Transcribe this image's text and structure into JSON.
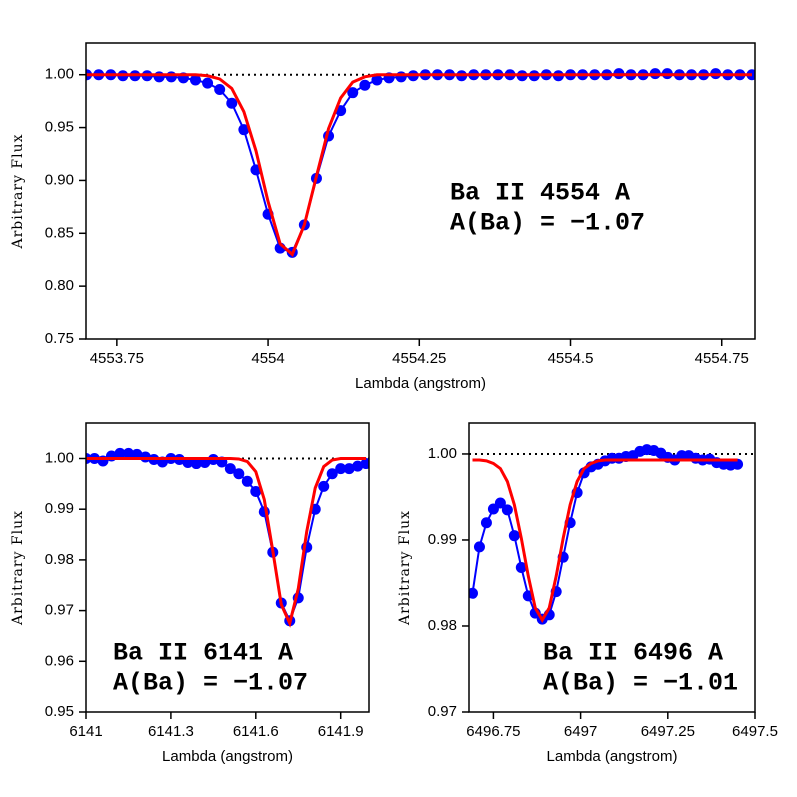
{
  "chart_data": [
    {
      "type": "line",
      "xlabel": "Lambda (angstrom)",
      "ylabel": "Arbitrary Flux",
      "annotations": [
        "Ba II 4554 A",
        "A(Ba) = −1.07"
      ],
      "xlim": [
        4553.699,
        4554.805
      ],
      "ylim": [
        0.75,
        1.03
      ],
      "xticks": [
        4553.75,
        4554,
        4554.25,
        4554.5,
        4554.75
      ],
      "yticks": [
        0.75,
        {
          "value": 0.8,
          "label": "0.80"
        },
        0.85,
        {
          "value": 0.9,
          "label": "0.90"
        },
        0.95,
        {
          "value": 1,
          "label": "1.00"
        }
      ],
      "hline": 1,
      "x": [
        4553.7,
        4553.72,
        4553.74,
        4553.76,
        4553.78,
        4553.8,
        4553.82,
        4553.84,
        4553.86,
        4553.88,
        4553.9,
        4553.92,
        4553.94,
        4553.96,
        4553.98,
        4554,
        4554.02,
        4554.04,
        4554.06,
        4554.08,
        4554.1,
        4554.12,
        4554.14,
        4554.16,
        4554.18,
        4554.2,
        4554.22,
        4554.24,
        4554.26,
        4554.28,
        4554.3,
        4554.32,
        4554.34,
        4554.36,
        4554.38,
        4554.4,
        4554.42,
        4554.44,
        4554.46,
        4554.48,
        4554.5,
        4554.52,
        4554.54,
        4554.56,
        4554.58,
        4554.6,
        4554.62,
        4554.64,
        4554.66,
        4554.68,
        4554.7,
        4554.72,
        4554.74,
        4554.76,
        4554.78,
        4554.8
      ],
      "series": [
        {
          "color": "#0000ff",
          "markers": true,
          "values": [
            1,
            1,
            1,
            0.999,
            0.999,
            0.999,
            0.998,
            0.998,
            0.997,
            0.995,
            0.992,
            0.986,
            0.973,
            0.948,
            0.91,
            0.868,
            0.836,
            0.832,
            0.858,
            0.902,
            0.942,
            0.966,
            0.983,
            0.99,
            0.995,
            0.997,
            0.998,
            0.999,
            1,
            1,
            1,
            0.999,
            1,
            1,
            1,
            1,
            0.999,
            0.999,
            1,
            0.999,
            1,
            1,
            1,
            1,
            1.001,
            1,
            1,
            1.001,
            1.001,
            1,
            1,
            1,
            1.001,
            1,
            1,
            1
          ]
        },
        {
          "color": "#ff0000",
          "markers": false,
          "values": [
            1,
            1,
            1,
            1,
            1,
            1,
            1,
            1,
            1,
            1,
            0.999,
            0.996,
            0.987,
            0.965,
            0.928,
            0.88,
            0.84,
            0.83,
            0.858,
            0.904,
            0.949,
            0.978,
            0.993,
            0.998,
            1,
            1,
            1,
            1,
            1,
            1,
            1,
            1,
            1,
            1,
            1,
            1,
            1,
            1,
            1,
            1,
            1,
            1,
            1,
            1,
            1,
            1,
            1,
            1,
            1,
            1,
            1,
            1,
            1,
            1,
            1,
            1
          ]
        }
      ]
    },
    {
      "type": "line",
      "xlabel": "Lambda (angstrom)",
      "ylabel": "Arbitrary Flux",
      "annotations": [
        "Ba II 6141 A",
        "A(Ba) = −1.07"
      ],
      "xlim": [
        6141,
        6142
      ],
      "ylim": [
        0.95,
        1.007
      ],
      "xticks": [
        6141,
        6141.3,
        6141.6,
        6141.9
      ],
      "yticks": [
        0.95,
        0.96,
        0.97,
        0.98,
        0.99,
        {
          "value": 1,
          "label": "1.00"
        }
      ],
      "hline": 1,
      "x": [
        6141,
        6141.03,
        6141.06,
        6141.09,
        6141.12,
        6141.15,
        6141.18,
        6141.21,
        6141.24,
        6141.27,
        6141.3,
        6141.33,
        6141.36,
        6141.39,
        6141.42,
        6141.45,
        6141.48,
        6141.51,
        6141.54,
        6141.57,
        6141.6,
        6141.63,
        6141.66,
        6141.69,
        6141.72,
        6141.75,
        6141.78,
        6141.81,
        6141.84,
        6141.87,
        6141.9,
        6141.93,
        6141.96,
        6141.99
      ],
      "series": [
        {
          "color": "#0000ff",
          "markers": true,
          "values": [
            1,
            1,
            0.9995,
            1.0005,
            1.001,
            1.001,
            1.0008,
            1.0003,
            0.9998,
            0.9993,
            1,
            0.9998,
            0.9992,
            0.999,
            0.9992,
            0.9998,
            0.9993,
            0.998,
            0.997,
            0.9955,
            0.9935,
            0.9895,
            0.9815,
            0.9715,
            0.968,
            0.9725,
            0.9825,
            0.99,
            0.9945,
            0.997,
            0.998,
            0.998,
            0.9985,
            0.999
          ]
        },
        {
          "color": "#ff0000",
          "markers": false,
          "values": [
            1,
            1,
            1,
            1,
            1,
            1,
            1,
            1,
            1,
            1,
            1,
            1,
            1,
            1,
            1,
            1,
            1,
            1,
            0.9999,
            0.9994,
            0.9974,
            0.9919,
            0.9818,
            0.9712,
            0.9675,
            0.9743,
            0.9856,
            0.9942,
            0.9984,
            0.9997,
            1,
            1,
            1,
            1
          ]
        }
      ]
    },
    {
      "type": "line",
      "xlabel": "Lambda (angstrom)",
      "ylabel": "Arbitrary Flux",
      "annotations": [
        "Ba II 6496 A",
        "A(Ba) = −1.01"
      ],
      "xlim": [
        6496.68,
        6497.5
      ],
      "ylim": [
        0.97,
        1.0036
      ],
      "xticks": [
        6496.75,
        6497,
        6497.25,
        6497.5
      ],
      "yticks": [
        0.97,
        0.98,
        0.99,
        {
          "value": 1,
          "label": "1.00"
        }
      ],
      "hline": 1,
      "x": [
        6496.69,
        6496.71,
        6496.73,
        6496.75,
        6496.77,
        6496.79,
        6496.81,
        6496.83,
        6496.85,
        6496.87,
        6496.89,
        6496.91,
        6496.93,
        6496.95,
        6496.97,
        6496.99,
        6497.01,
        6497.03,
        6497.05,
        6497.07,
        6497.09,
        6497.11,
        6497.13,
        6497.15,
        6497.17,
        6497.19,
        6497.21,
        6497.23,
        6497.25,
        6497.27,
        6497.29,
        6497.31,
        6497.33,
        6497.35,
        6497.37,
        6497.39,
        6497.41,
        6497.43,
        6497.45
      ],
      "series": [
        {
          "color": "#0000ff",
          "markers": true,
          "values": [
            0.9838,
            0.9892,
            0.992,
            0.9936,
            0.9943,
            0.9935,
            0.9905,
            0.9868,
            0.9835,
            0.9815,
            0.9808,
            0.9813,
            0.984,
            0.988,
            0.992,
            0.9955,
            0.9978,
            0.9985,
            0.9988,
            0.9992,
            0.9995,
            0.9995,
            0.9997,
            0.9998,
            1.0003,
            1.0005,
            1.0004,
            1.0001,
            0.9996,
            0.9993,
            0.9998,
            0.9998,
            0.9995,
            0.9993,
            0.9994,
            0.999,
            0.9988,
            0.9987,
            0.9988
          ]
        },
        {
          "color": "#ff0000",
          "markers": false,
          "values": [
            0.9993,
            0.9993,
            0.9992,
            0.9989,
            0.9983,
            0.9968,
            0.9941,
            0.9902,
            0.9858,
            0.9821,
            0.9807,
            0.9821,
            0.9858,
            0.9902,
            0.9941,
            0.9968,
            0.9983,
            0.9989,
            0.9992,
            0.9993,
            0.9993,
            0.9993,
            0.9993,
            0.9993,
            0.9993,
            0.9993,
            0.9993,
            0.9993,
            0.9993,
            0.9993,
            0.9993,
            0.9993,
            0.9993,
            0.9993,
            0.9993,
            0.9993,
            0.9993,
            0.9993,
            0.9993
          ]
        }
      ]
    }
  ]
}
